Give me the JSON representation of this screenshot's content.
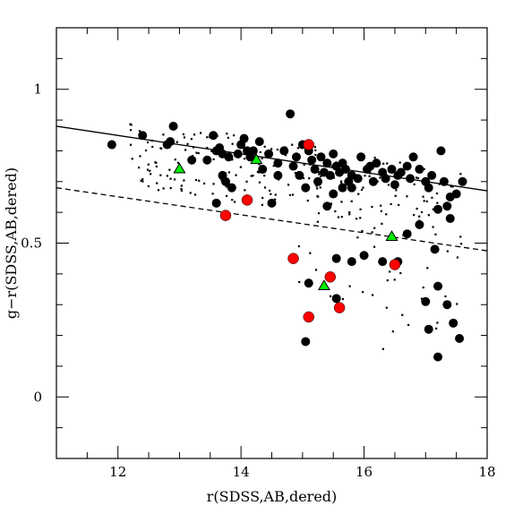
{
  "chart_data": {
    "type": "scatter",
    "title": "",
    "xlabel": "r(SDSS,AB,dered)",
    "ylabel": "g−r(SDSS,AB,dered)",
    "xlim": [
      11,
      18
    ],
    "ylim": [
      -0.2,
      1.2
    ],
    "xticks_major": [
      12,
      14,
      16,
      18
    ],
    "yticks_major": [
      0,
      0.5,
      1
    ],
    "xtick_labels": [
      "12",
      "14",
      "16",
      "18"
    ],
    "ytick_labels": [
      "0",
      "0.5",
      "1"
    ],
    "grid": false,
    "legend": "none",
    "colors": {
      "black": "#000000",
      "red": "#ff0000",
      "green": "#00ee00"
    },
    "lines": [
      {
        "style": "solid",
        "x": [
          11,
          18
        ],
        "y": [
          0.88,
          0.67
        ]
      },
      {
        "style": "dashed",
        "x": [
          11,
          18
        ],
        "y": [
          0.68,
          0.475
        ]
      }
    ],
    "series": [
      {
        "marker": "large-black-circle",
        "points": [
          [
            11.9,
            0.82
          ],
          [
            12.4,
            0.85
          ],
          [
            12.8,
            0.82
          ],
          [
            12.9,
            0.88
          ],
          [
            12.85,
            0.83
          ],
          [
            13.2,
            0.77
          ],
          [
            13.45,
            0.77
          ],
          [
            13.55,
            0.85
          ],
          [
            13.6,
            0.8
          ],
          [
            13.65,
            0.81
          ],
          [
            13.7,
            0.79
          ],
          [
            13.6,
            0.63
          ],
          [
            13.7,
            0.72
          ],
          [
            13.75,
            0.7
          ],
          [
            13.8,
            0.78
          ],
          [
            13.85,
            0.68
          ],
          [
            13.95,
            0.79
          ],
          [
            14.0,
            0.82
          ],
          [
            14.05,
            0.84
          ],
          [
            14.1,
            0.8
          ],
          [
            14.15,
            0.78
          ],
          [
            14.2,
            0.8
          ],
          [
            14.3,
            0.83
          ],
          [
            14.35,
            0.74
          ],
          [
            14.45,
            0.79
          ],
          [
            14.5,
            0.63
          ],
          [
            14.6,
            0.72
          ],
          [
            14.6,
            0.76
          ],
          [
            14.7,
            0.8
          ],
          [
            14.8,
            0.92
          ],
          [
            14.85,
            0.75
          ],
          [
            14.9,
            0.78
          ],
          [
            14.95,
            0.72
          ],
          [
            15.0,
            0.82
          ],
          [
            15.05,
            0.68
          ],
          [
            15.1,
            0.8
          ],
          [
            15.15,
            0.77
          ],
          [
            15.2,
            0.74
          ],
          [
            15.25,
            0.7
          ],
          [
            15.3,
            0.78
          ],
          [
            15.35,
            0.73
          ],
          [
            15.4,
            0.76
          ],
          [
            15.45,
            0.72
          ],
          [
            15.5,
            0.79
          ],
          [
            15.55,
            0.75
          ],
          [
            15.6,
            0.73
          ],
          [
            15.65,
            0.68
          ],
          [
            15.65,
            0.76
          ],
          [
            15.7,
            0.74
          ],
          [
            15.75,
            0.7
          ],
          [
            15.8,
            0.72
          ],
          [
            15.9,
            0.71
          ],
          [
            15.95,
            0.78
          ],
          [
            16.05,
            0.74
          ],
          [
            16.1,
            0.75
          ],
          [
            16.15,
            0.7
          ],
          [
            16.2,
            0.76
          ],
          [
            16.3,
            0.73
          ],
          [
            16.35,
            0.71
          ],
          [
            16.45,
            0.74
          ],
          [
            16.5,
            0.69
          ],
          [
            16.55,
            0.72
          ],
          [
            16.6,
            0.73
          ],
          [
            16.7,
            0.75
          ],
          [
            16.75,
            0.71
          ],
          [
            16.8,
            0.78
          ],
          [
            16.9,
            0.74
          ],
          [
            17.0,
            0.7
          ],
          [
            17.05,
            0.68
          ],
          [
            17.1,
            0.72
          ],
          [
            17.2,
            0.61
          ],
          [
            17.25,
            0.8
          ],
          [
            17.3,
            0.7
          ],
          [
            17.35,
            0.62
          ],
          [
            17.4,
            0.65
          ],
          [
            17.5,
            0.66
          ],
          [
            17.6,
            0.7
          ],
          [
            15.4,
            0.62
          ],
          [
            15.5,
            0.66
          ],
          [
            15.1,
            0.37
          ],
          [
            15.05,
            0.18
          ],
          [
            15.55,
            0.32
          ],
          [
            15.55,
            0.45
          ],
          [
            15.8,
            0.44
          ],
          [
            16.0,
            0.46
          ],
          [
            16.3,
            0.44
          ],
          [
            16.55,
            0.44
          ],
          [
            17.0,
            0.31
          ],
          [
            17.05,
            0.22
          ],
          [
            17.2,
            0.36
          ],
          [
            17.2,
            0.13
          ],
          [
            17.35,
            0.3
          ],
          [
            17.45,
            0.24
          ],
          [
            17.55,
            0.19
          ],
          [
            17.15,
            0.48
          ],
          [
            17.4,
            0.58
          ],
          [
            16.7,
            0.53
          ],
          [
            16.9,
            0.56
          ],
          [
            15.8,
            0.68
          ]
        ]
      },
      {
        "marker": "red-circle",
        "points": [
          [
            13.75,
            0.59
          ],
          [
            14.1,
            0.64
          ],
          [
            14.85,
            0.45
          ],
          [
            15.1,
            0.82
          ],
          [
            15.1,
            0.26
          ],
          [
            15.45,
            0.39
          ],
          [
            15.6,
            0.29
          ],
          [
            16.5,
            0.43
          ]
        ]
      },
      {
        "marker": "green-triangle",
        "points": [
          [
            13.0,
            0.74
          ],
          [
            14.25,
            0.77
          ],
          [
            15.35,
            0.36
          ],
          [
            16.45,
            0.52
          ]
        ]
      }
    ]
  }
}
